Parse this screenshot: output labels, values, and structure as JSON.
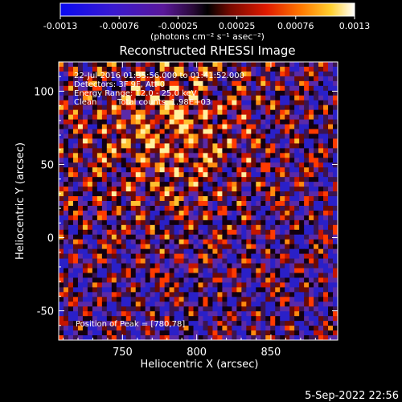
{
  "colorbar": {
    "ticks": [
      "-0.0013",
      "-0.00076",
      "-0.00025",
      "0.00025",
      "0.00076",
      "0.0013"
    ],
    "units": "(photons cm⁻² s⁻¹ asec⁻²)"
  },
  "chart_data": {
    "type": "heatmap",
    "title": "Reconstructed RHESSI Image",
    "xlabel": "Heliocentric X (arcsec)",
    "ylabel": "Heliocentric Y (arcsec)",
    "xlim": [
      707,
      895
    ],
    "ylim": [
      -70,
      120
    ],
    "x_ticks": [
      750,
      800,
      850
    ],
    "y_ticks": [
      100,
      50,
      0,
      -50
    ],
    "color_range": [
      -0.0013,
      0.0013
    ],
    "colormap": "blue-purple-red-yellow-white",
    "peak": [
      780,
      78
    ]
  },
  "annotations": {
    "time": "22-Jul-2016 01:35:56.000 to 01:41:52.000",
    "detectors": "Detectors: 3F 9F, Att 0",
    "energy": "Energy Range: 12.0 - 25.0 keV",
    "method": "Clean",
    "counts": "Total counts: 1.98E+03",
    "peak": "Position of Peak = [780,78]"
  },
  "footer": {
    "date": "5-Sep-2022 22:56"
  }
}
